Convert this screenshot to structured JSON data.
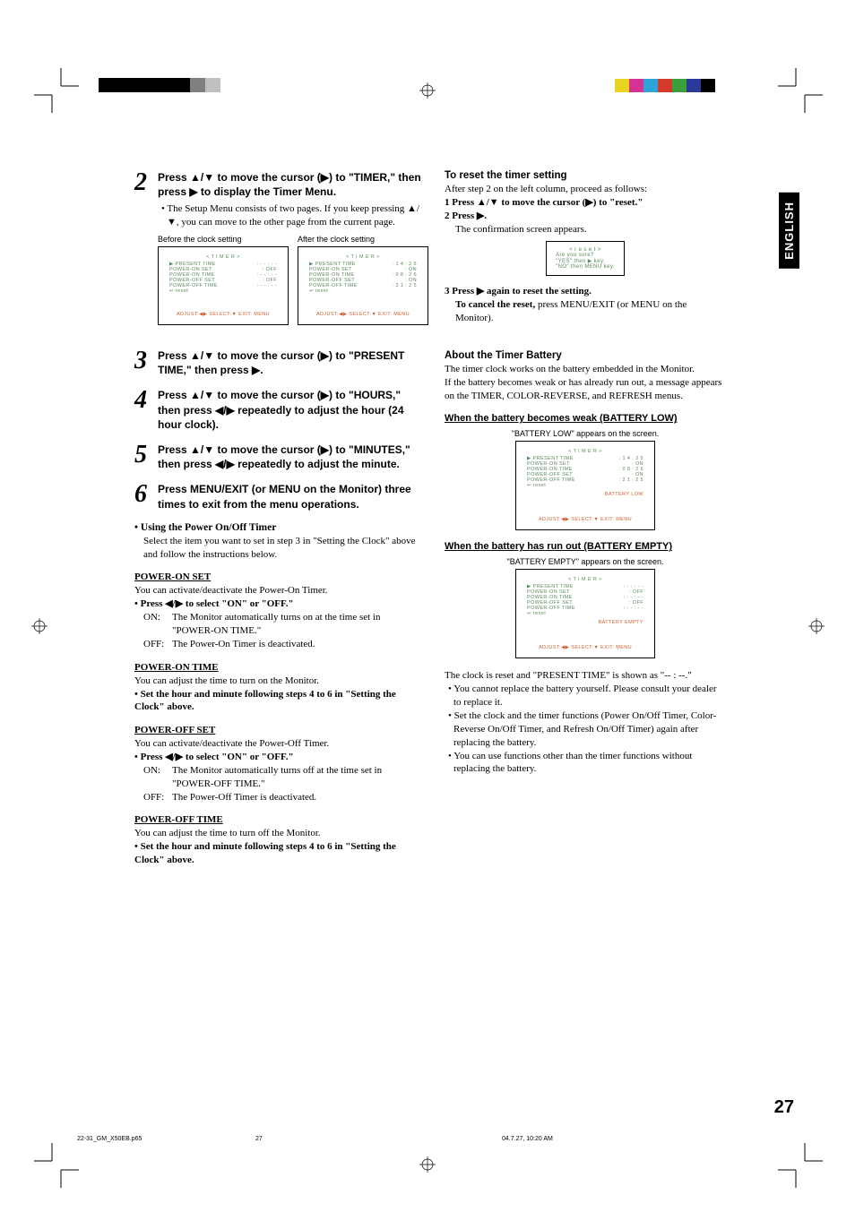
{
  "tab": "ENGLISH",
  "pageNum": "27",
  "footer": {
    "file": "22-31_GM_X50EB.p65",
    "page": "27",
    "ts": "04.7.27, 10:20 AM"
  },
  "colorBarLeft": [
    "#000000",
    "#000000",
    "#000000",
    "#000000",
    "#000000",
    "#000000",
    "#808080",
    "#c0c0c0",
    "#ffffff"
  ],
  "colorBarRight": [
    "#e9d41f",
    "#d53394",
    "#2aa4d9",
    "#d43a2a",
    "#3aa03a",
    "#2a3a9a",
    "#000000"
  ],
  "steps": {
    "s2": {
      "num": "2",
      "title": "Press ▲/▼ to move the cursor (▶) to \"TIMER,\" then press ▶ to display the Timer Menu.",
      "note": "The Setup Menu consists of two pages. If you keep pressing ▲/▼, you can move to the other page from the current page.",
      "capBefore": "Before the clock setting",
      "capAfter": "After the clock setting"
    },
    "s3": {
      "num": "3",
      "title": "Press ▲/▼ to move the cursor (▶) to \"PRESENT TIME,\" then press ▶."
    },
    "s4": {
      "num": "4",
      "title": "Press ▲/▼ to move the cursor (▶) to \"HOURS,\" then press ◀/▶ repeatedly to adjust the hour (24 hour clock)."
    },
    "s5": {
      "num": "5",
      "title": "Press ▲/▼ to move the cursor (▶) to \"MINUTES,\" then press ◀/▶ repeatedly to adjust the minute."
    },
    "s6": {
      "num": "6",
      "title": "Press MENU/EXIT (or MENU on the Monitor) three times to exit from the menu operations."
    }
  },
  "usingTimer": {
    "head": "• Using the Power On/Off Timer",
    "body": "Select the item you want to set in step 3 in \"Setting the Clock\" above and follow the instructions below."
  },
  "powerOnSet": {
    "head": "POWER-ON SET",
    "body": "You can activate/deactivate the Power-On Timer.",
    "press": "• Press ◀/▶ to select \"ON\" or \"OFF.\"",
    "onLbl": "ON:",
    "onTxt": "The Monitor automatically turns on at the time set in \"POWER-ON TIME.\"",
    "offLbl": "OFF:",
    "offTxt": "The Power-On Timer is deactivated."
  },
  "powerOnTime": {
    "head": "POWER-ON TIME",
    "body": "You can adjust the time to turn on the Monitor.",
    "press": "• Set the hour and minute following steps 4 to 6 in \"Setting the Clock\" above."
  },
  "powerOffSet": {
    "head": "POWER-OFF SET",
    "body": "You can activate/deactivate the Power-Off Timer.",
    "press": "• Press ◀/▶ to select \"ON\" or \"OFF.\"",
    "onLbl": "ON:",
    "onTxt": "The Monitor automatically turns off at the time set in \"POWER-OFF TIME.\"",
    "offLbl": "OFF:",
    "offTxt": "The Power-Off Timer is deactivated."
  },
  "powerOffTime": {
    "head": "POWER-OFF TIME",
    "body": "You can adjust the time to turn off the Monitor.",
    "press": "• Set the hour and minute following steps 4 to 6 in \"Setting the Clock\" above."
  },
  "reset": {
    "head": "To reset the timer setting",
    "body1": "After step 2 on the left column, proceed as follows:",
    "l1": "1  Press ▲/▼ to move the cursor (▶) to \"reset.\"",
    "l2": "2  Press ▶.",
    "l2b": "The confirmation screen appears.",
    "l3": "3  Press ▶ again to reset the setting.",
    "cancel": "To cancel the reset, press MENU/EXIT (or MENU on the Monitor).",
    "fig": {
      "t": "< r e s e t >",
      "a": "Are you sure?",
      "y": "\"YES\"  then     ▶     key.",
      "n": "\"NO\"    then  MENU  key."
    }
  },
  "battery": {
    "head": "About the Timer Battery",
    "b1": "The timer clock works on the battery embedded in the Monitor.",
    "b2": "If the battery becomes weak or has already run out, a message appears on the TIMER, COLOR-REVERSE, and REFRESH menus.",
    "lowHead": "When the battery becomes weak (BATTERY LOW)",
    "lowCap": "\"BATTERY LOW\" appears on the screen.",
    "emptyHead": "When the battery has run out (BATTERY EMPTY)",
    "emptyCap": "\"BATTERY EMPTY\" appears on the screen.",
    "note1": "The clock is reset and \"PRESENT TIME\" is shown as \"-- : --.\"",
    "note2": "You cannot replace the battery yourself. Please consult your dealer to replace it.",
    "note3": "Set the clock and the timer functions (Power On/Off Timer, Color-Reverse On/Off Timer, and Refresh On/Off Timer) again after replacing the battery.",
    "note4": "You can use functions other than the timer functions without replacing the battery."
  },
  "menuBefore": {
    "title": "< T I M E R >",
    "rows": [
      [
        "▶ PRESENT TIME",
        ": - - : - -"
      ],
      [
        "  POWER-ON SET",
        ": OFF"
      ],
      [
        "  POWER-ON TIME",
        ": - - : - -"
      ],
      [
        "  POWER-OFF SET",
        ": OFF"
      ],
      [
        "  POWER-OFF TIME",
        ": - - : - -"
      ],
      [
        "  ↩ reset",
        ""
      ]
    ],
    "bottom": "ADJUST:◀▶ SELECT:▼  EXIT: MENU"
  },
  "menuAfter": {
    "title": "< T I M E R >",
    "rows": [
      [
        "▶ PRESENT TIME",
        ": 1 4 : 2 5"
      ],
      [
        "  POWER-ON SET",
        ": ON"
      ],
      [
        "  POWER-ON TIME",
        ": 0 8 : 2 6"
      ],
      [
        "  POWER-OFF SET",
        ": ON"
      ],
      [
        "  POWER-OFF TIME",
        ": 2 1 : 2 5"
      ],
      [
        "  ↩ reset",
        ""
      ]
    ],
    "bottom": "ADJUST:◀▶ SELECT:▼  EXIT: MENU"
  },
  "menuLow": {
    "title": "< T I M E R >",
    "rows": [
      [
        "▶ PRESENT TIME",
        ": 1 4 : 2 5"
      ],
      [
        "  POWER-ON SET",
        ": ON"
      ],
      [
        "  POWER-ON TIME",
        ": 0 8 : 2 6"
      ],
      [
        "  POWER-OFF SET",
        ": ON"
      ],
      [
        "  POWER-OFF TIME",
        ": 2 1 : 2 5"
      ],
      [
        "  ↩ reset",
        ""
      ]
    ],
    "warn": "BATTERY LOW",
    "bottom": "ADJUST:◀▶ SELECT:▼  EXIT: MENU"
  },
  "menuEmpty": {
    "title": "< T I M E R >",
    "rows": [
      [
        "▶ PRESENT TIME",
        ": - - : - -"
      ],
      [
        "  POWER-ON SET",
        ": OFF"
      ],
      [
        "  POWER-ON TIME",
        ": - - : - -"
      ],
      [
        "  POWER-OFF SET",
        ": OFF"
      ],
      [
        "  POWER-OFF TIME",
        ": - - : - -"
      ],
      [
        "  ↩ reset",
        ""
      ]
    ],
    "warn": "BATTERY EMPTY",
    "bottom": "ADJUST:◀▶ SELECT:▼  EXIT: MENU"
  }
}
